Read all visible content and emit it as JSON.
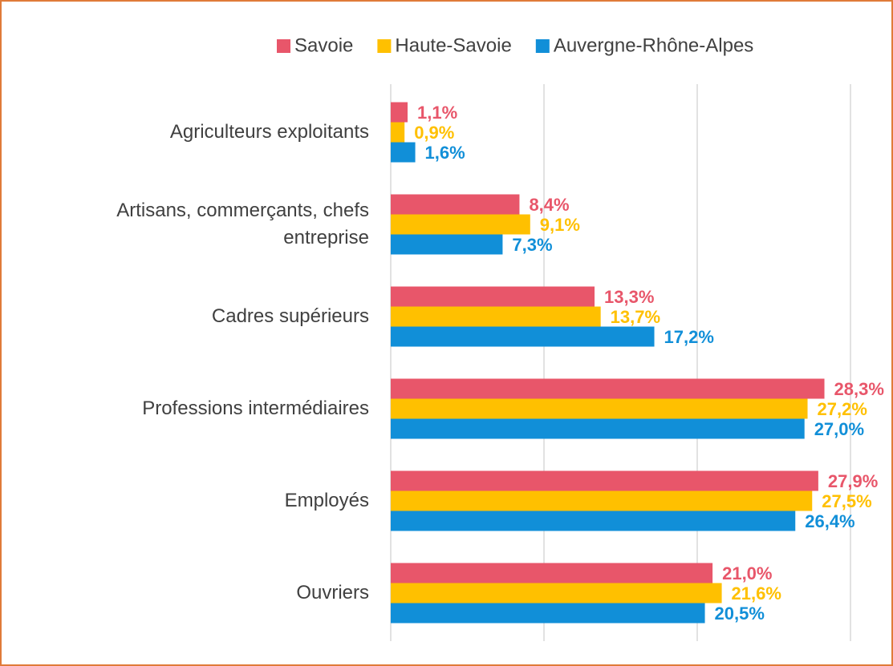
{
  "chart_data": {
    "type": "hbar",
    "categories": [
      "Agriculteurs exploitants",
      "Artisans, commerçants, chefs entreprise",
      "Cadres supérieurs",
      "Professions intermédiaires",
      "Employés",
      "Ouvriers"
    ],
    "series": [
      {
        "name": "Savoie",
        "color": "#e8566a",
        "values": [
          1.1,
          8.4,
          13.3,
          28.3,
          27.9,
          21.0
        ],
        "value_labels": [
          "1,1%",
          "8,4%",
          "13,3%",
          "28,3%",
          "27,9%",
          "21,0%"
        ]
      },
      {
        "name": "Haute-Savoie",
        "color": "#ffc000",
        "values": [
          0.9,
          9.1,
          13.7,
          27.2,
          27.5,
          21.6
        ],
        "value_labels": [
          "0,9%",
          "9,1%",
          "13,7%",
          "27,2%",
          "27,5%",
          "21,6%"
        ]
      },
      {
        "name": "Auvergne-Rhône-Alpes",
        "color": "#118fd8",
        "values": [
          1.6,
          7.3,
          17.2,
          27.0,
          26.4,
          20.5
        ],
        "value_labels": [
          "1,6%",
          "7,3%",
          "17,2%",
          "27,0%",
          "26,4%",
          "20,5%"
        ]
      }
    ],
    "xlim": [
      0,
      30
    ],
    "xticks": [
      0,
      10,
      20,
      30
    ],
    "grid": true,
    "legend": "top"
  }
}
